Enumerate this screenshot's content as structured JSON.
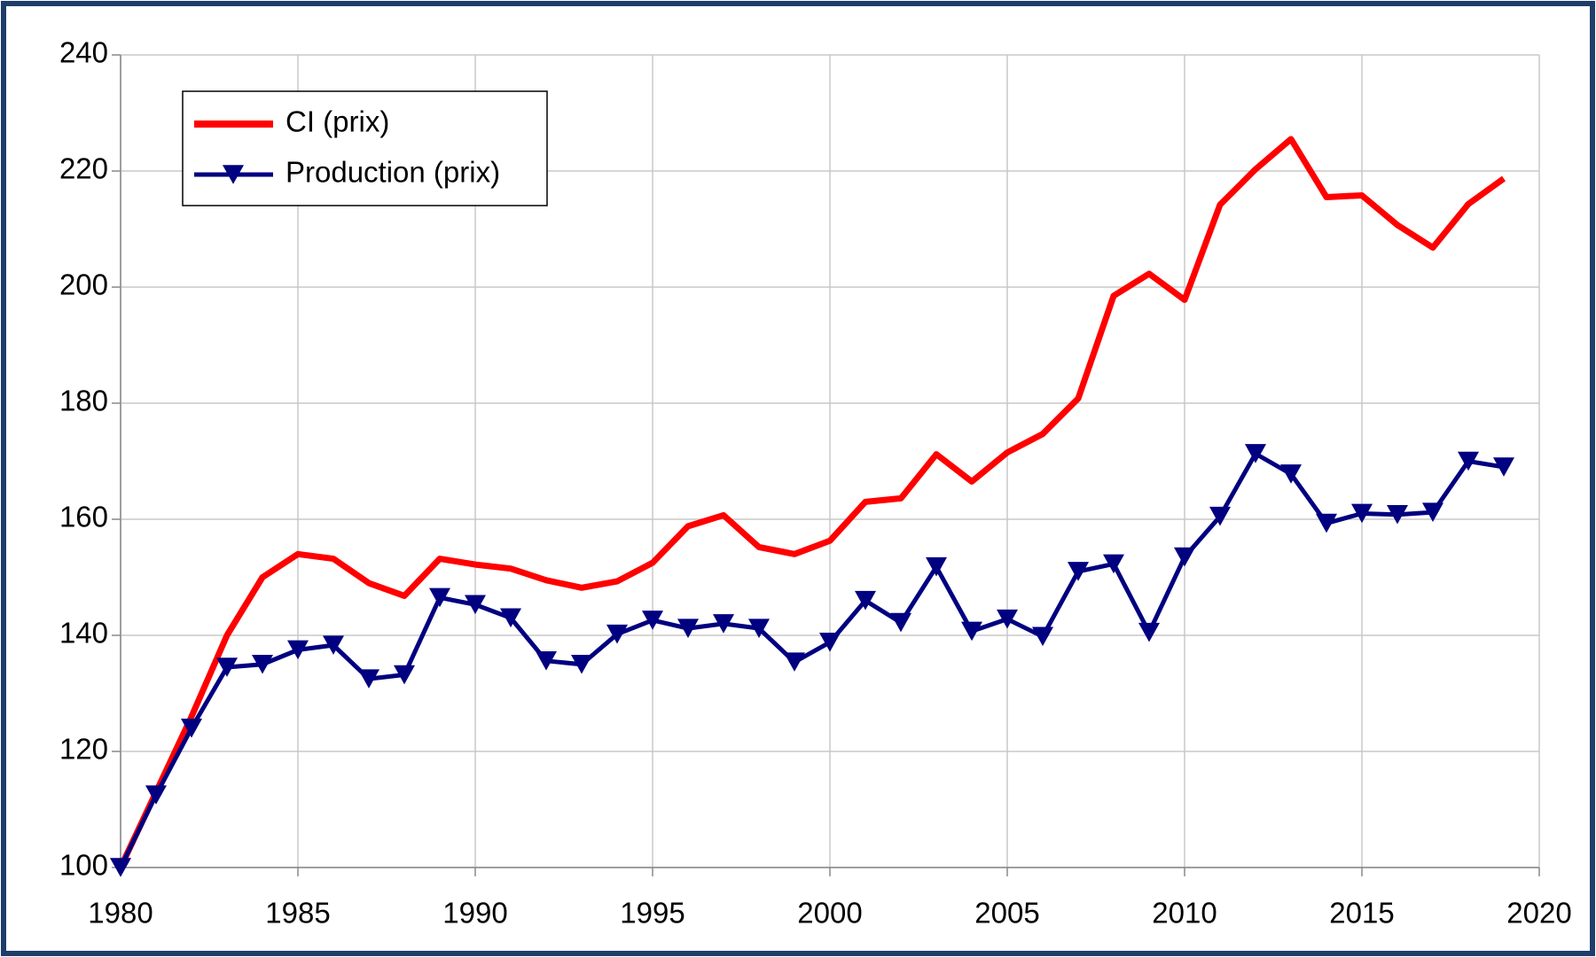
{
  "chart_data": {
    "type": "line",
    "x": [
      1980,
      1981,
      1982,
      1983,
      1984,
      1985,
      1986,
      1987,
      1988,
      1989,
      1990,
      1991,
      1992,
      1993,
      1994,
      1995,
      1996,
      1997,
      1998,
      1999,
      2000,
      2001,
      2002,
      2003,
      2004,
      2005,
      2006,
      2007,
      2008,
      2009,
      2010,
      2011,
      2012,
      2013,
      2014,
      2015,
      2016,
      2017,
      2018,
      2019
    ],
    "series": [
      {
        "name": "CI (prix)",
        "color": "#ff0000",
        "marker": "none",
        "values": [
          100,
          113,
          126,
          140,
          150,
          154,
          153.2,
          149,
          146.8,
          153.2,
          152.2,
          151.5,
          149.5,
          148.2,
          149.3,
          152.5,
          158.8,
          160.7,
          155.2,
          154,
          156.3,
          163,
          163.6,
          171.2,
          166.5,
          171.5,
          174.7,
          180.8,
          198.5,
          202.3,
          197.8,
          214.2,
          220.3,
          225.5,
          215.5,
          215.8,
          210.7,
          206.8,
          214.3,
          218.7
        ]
      },
      {
        "name": "Production (prix)",
        "color": "#000080",
        "marker": "triangle-down",
        "values": [
          100,
          112.5,
          124,
          134.5,
          135,
          137.5,
          138.3,
          132.5,
          133.2,
          146.5,
          145.3,
          143,
          135.6,
          135,
          140.2,
          142.6,
          141.2,
          142,
          141.2,
          135.4,
          138.8,
          146,
          142.2,
          151.8,
          140.7,
          142.8,
          139.8,
          151,
          152.3,
          140.5,
          153.5,
          160.5,
          171.3,
          167.8,
          159.3,
          161,
          160.8,
          161.2,
          170,
          169
        ]
      }
    ],
    "xlim": [
      1980,
      2020
    ],
    "xticks": [
      1980,
      1985,
      1990,
      1995,
      2000,
      2005,
      2010,
      2015,
      2020
    ],
    "ylim": [
      100,
      240
    ],
    "yticks": [
      100,
      120,
      140,
      160,
      180,
      200,
      220,
      240
    ],
    "grid": true,
    "legend": "upper left"
  }
}
